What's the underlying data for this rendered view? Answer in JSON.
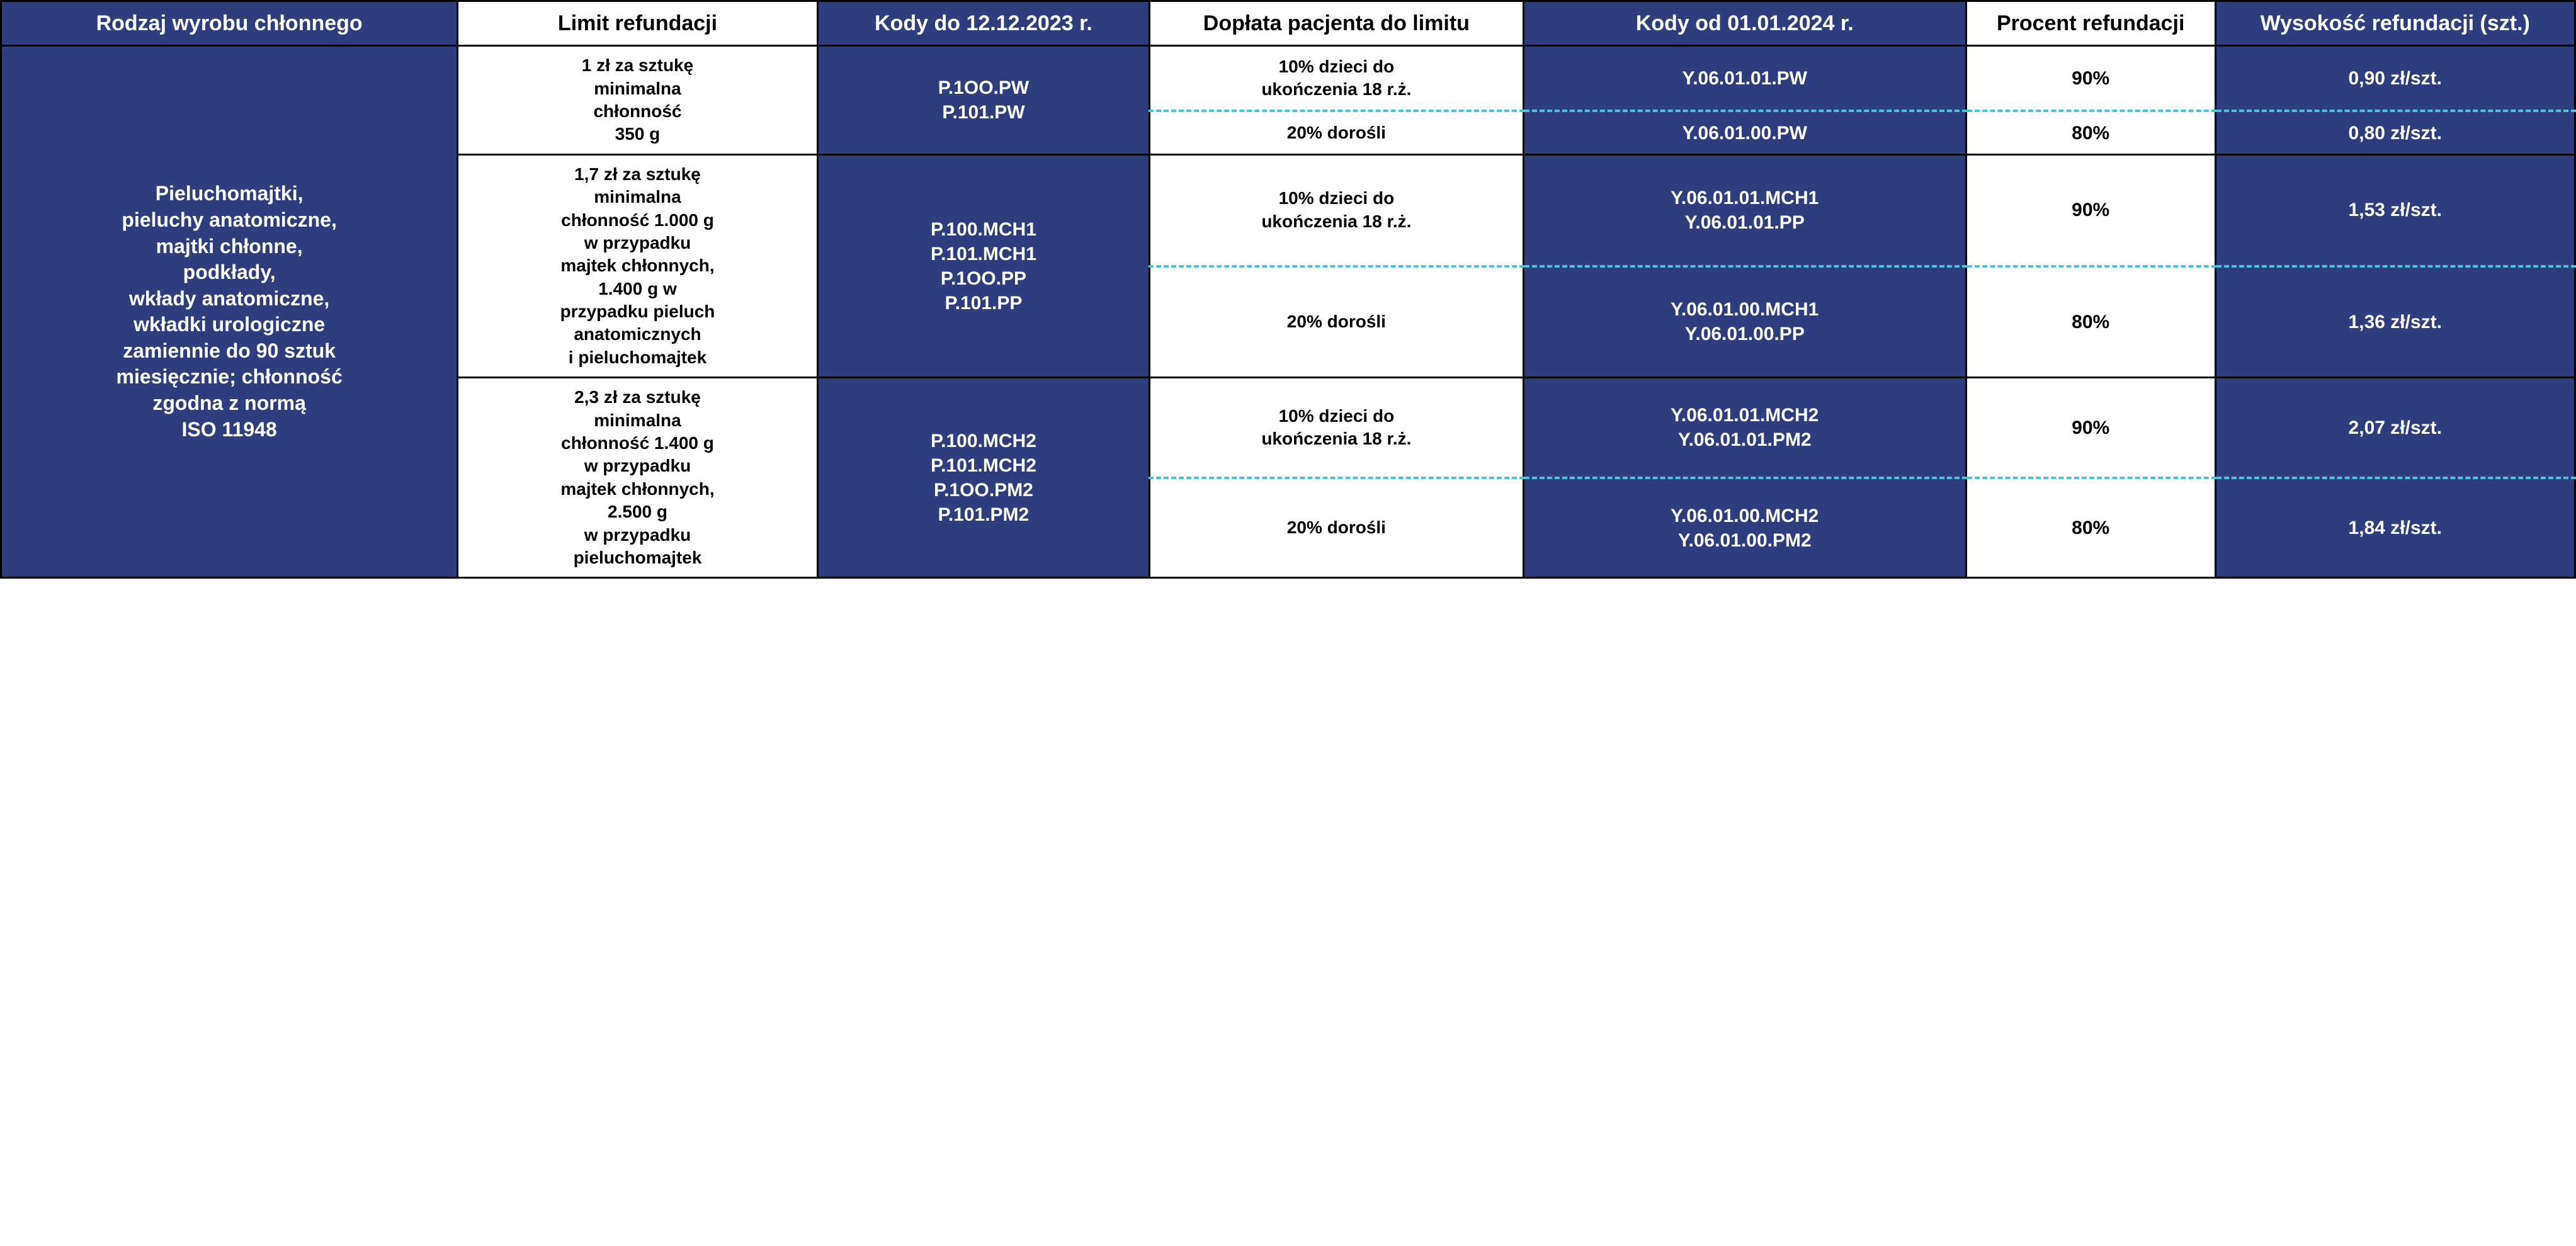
{
  "colors": {
    "blue_bg": "#2e3d7e",
    "white_bg": "#ffffff",
    "border": "#000000",
    "dash": "#4dc3d9"
  },
  "headers": {
    "c1": "Rodzaj wyrobu chłonnego",
    "c2": "Limit refundacji",
    "c3": "Kody do 12.12.2023 r.",
    "c4": "Dopłata pacjenta do limitu",
    "c5": "Kody od 01.01.2024 r.",
    "c6": "Procent refundacji",
    "c7": "Wysokość refundacji (szt.)"
  },
  "rowspan_label": "Pieluchomajtki,\npieluchy anatomiczne,\nmajtki chłonne,\npodkłady,\nwkłady anatomiczne,\nwkładki urologiczne\nzamiennie do 90 sztuk\nmiesięcznie; chłonność\nzgodna z normą\nISO 11948",
  "groups": [
    {
      "limit": "1 zł za sztukę\nminimalna\nchłonność\n350 g",
      "codes_old": "P.1OO.PW\nP.101.PW",
      "sub": [
        {
          "surcharge": "10% dzieci do\nukończenia 18 r.ż.",
          "codes_new": "Y.06.01.01.PW",
          "percent": "90%",
          "amount": "0,90 zł/szt."
        },
        {
          "surcharge": "20% dorośli",
          "codes_new": "Y.06.01.00.PW",
          "percent": "80%",
          "amount": "0,80 zł/szt."
        }
      ]
    },
    {
      "limit": "1,7 zł za sztukę\nminimalna\nchłonność 1.000 g\nw przypadku\nmajtek chłonnych,\n1.400 g w\nprzypadku pieluch\nanatomicznych\ni pieluchomajtek",
      "codes_old": "P.100.MCH1\nP.101.MCH1\nP.1OO.PP\nP.101.PP",
      "sub": [
        {
          "surcharge": "10% dzieci do\nukończenia 18 r.ż.",
          "codes_new": "Y.06.01.01.MCH1\nY.06.01.01.PP",
          "percent": "90%",
          "amount": "1,53 zł/szt."
        },
        {
          "surcharge": "20% dorośli",
          "codes_new": "Y.06.01.00.MCH1\nY.06.01.00.PP",
          "percent": "80%",
          "amount": "1,36 zł/szt."
        }
      ]
    },
    {
      "limit": "2,3 zł za sztukę\nminimalna\nchłonność 1.400 g\nw przypadku\nmajtek chłonnych,\n2.500 g\nw przypadku\npieluchomajtek",
      "codes_old": "P.100.MCH2\nP.101.MCH2\nP.1OO.PM2\nP.101.PM2",
      "sub": [
        {
          "surcharge": "10% dzieci do\nukończenia 18 r.ż.",
          "codes_new": "Y.06.01.01.MCH2\nY.06.01.01.PM2",
          "percent": "90%",
          "amount": "2,07 zł/szt."
        },
        {
          "surcharge": "20% dorośli",
          "codes_new": "Y.06.01.00.MCH2\nY.06.01.00.PM2",
          "percent": "80%",
          "amount": "1,84 zł/szt."
        }
      ]
    }
  ]
}
